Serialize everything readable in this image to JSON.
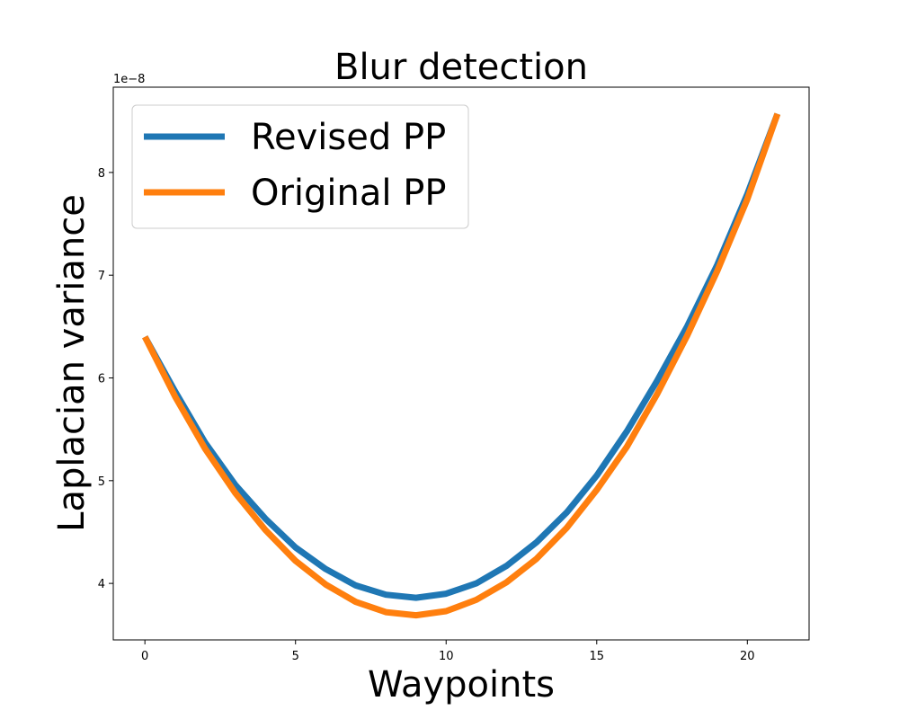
{
  "chart_data": {
    "type": "line",
    "title": "Blur detection",
    "xlabel": "Waypoints",
    "ylabel": "Laplacian variance",
    "y_offset_label": "1e−8",
    "xlim": [
      -1.05,
      22.05
    ],
    "ylim": [
      3.45,
      8.83
    ],
    "x_ticks": [
      0,
      5,
      10,
      15,
      20
    ],
    "y_ticks": [
      4,
      5,
      6,
      7,
      8
    ],
    "grid": false,
    "legend_position": "upper-left",
    "x": [
      0,
      1,
      2,
      3,
      4,
      5,
      6,
      7,
      8,
      9,
      10,
      11,
      12,
      13,
      14,
      15,
      16,
      17,
      18,
      19,
      20,
      21
    ],
    "series": [
      {
        "name": "Revised PP",
        "color": "#1f77b4",
        "values": [
          6.4,
          5.87,
          5.37,
          4.96,
          4.63,
          4.35,
          4.14,
          3.98,
          3.89,
          3.86,
          3.9,
          4.0,
          4.17,
          4.4,
          4.69,
          5.05,
          5.48,
          5.97,
          6.5,
          7.1,
          7.79,
          8.57
        ]
      },
      {
        "name": "Original PP",
        "color": "#ff7f0e",
        "values": [
          6.4,
          5.82,
          5.31,
          4.88,
          4.52,
          4.22,
          3.99,
          3.82,
          3.72,
          3.69,
          3.73,
          3.84,
          4.01,
          4.24,
          4.54,
          4.91,
          5.33,
          5.84,
          6.41,
          7.04,
          7.74,
          8.57
        ]
      }
    ]
  }
}
